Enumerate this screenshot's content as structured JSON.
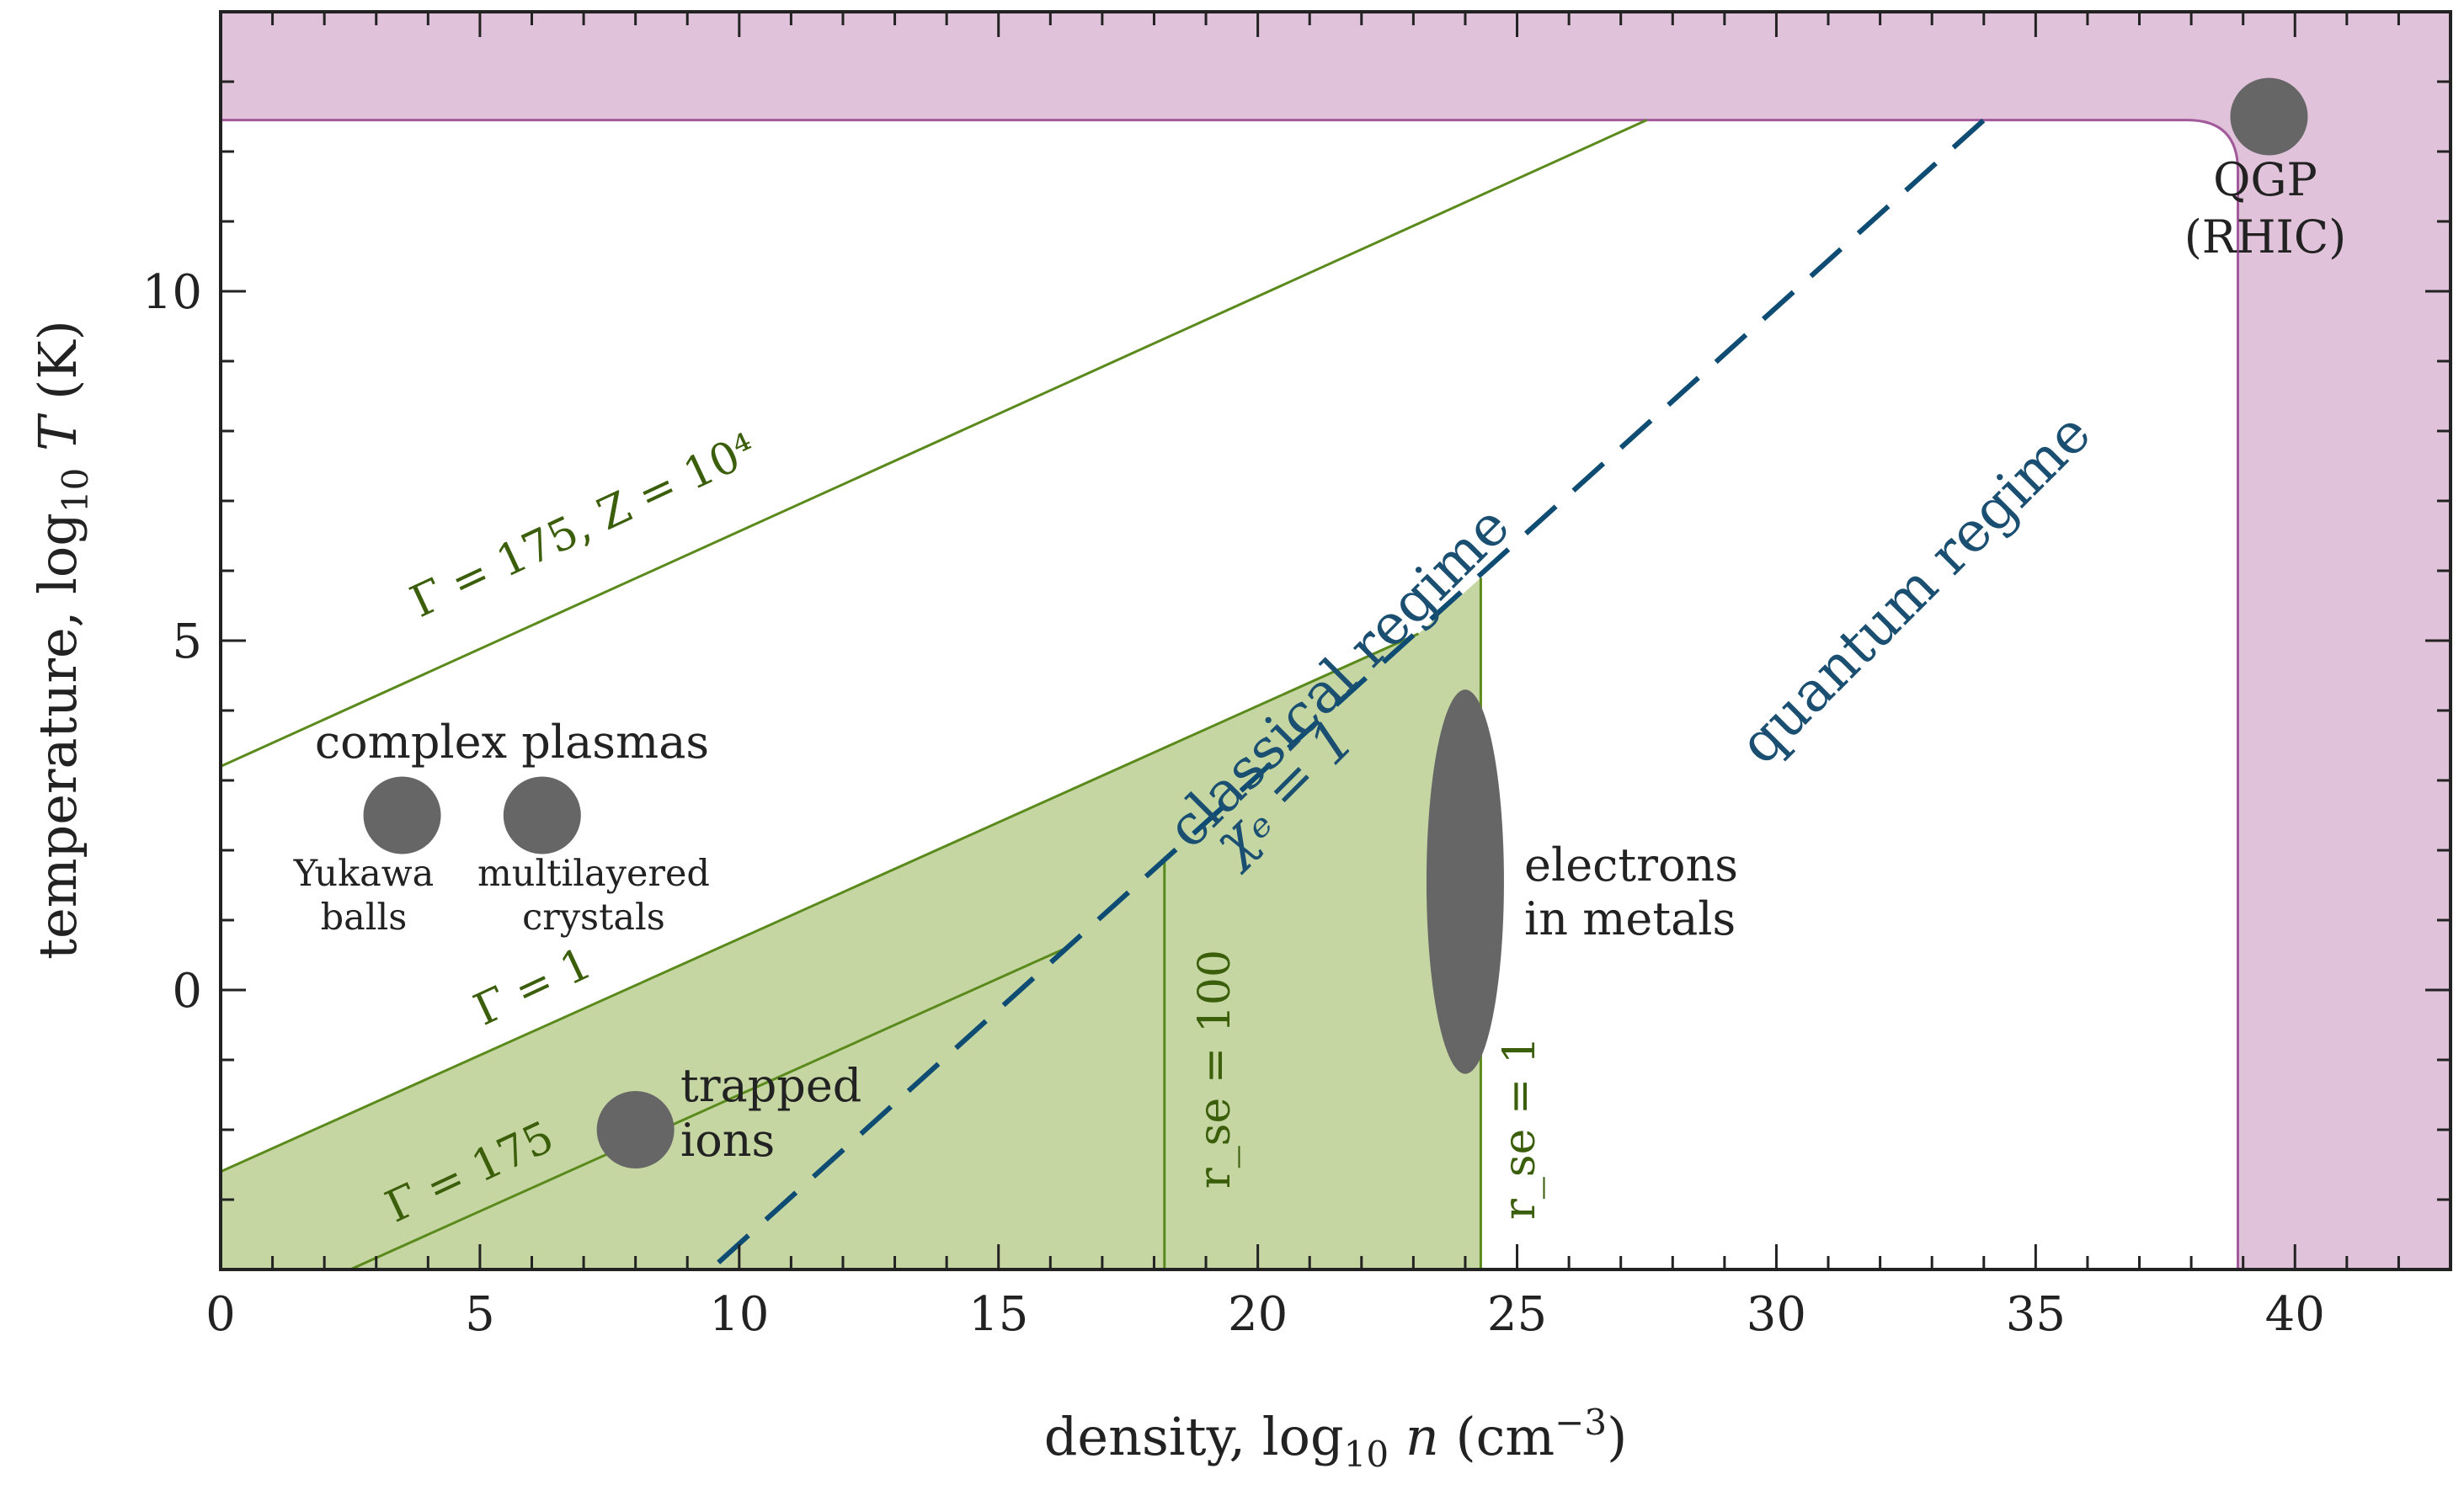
{
  "chart_data": {
    "type": "area",
    "xlabel": "density, log₁₀ n (cm⁻³)",
    "ylabel": "temperature, log₁₀ T (K)",
    "xlim": [
      0,
      43
    ],
    "ylim": [
      -4,
      14
    ],
    "x_ticks": [
      0,
      5,
      10,
      15,
      20,
      25,
      30,
      35,
      40
    ],
    "y_ticks": [
      0,
      5,
      10
    ],
    "x_tick_labels": [
      "0",
      "5",
      "10",
      "15",
      "20",
      "25",
      "30",
      "35",
      "40"
    ],
    "y_tick_labels": [
      "0",
      "5",
      "10"
    ],
    "colors": {
      "strong_coupling_fill": "#c5d6a3",
      "green_line": "#5b8a1c",
      "qgp_fill": "#e0c3da",
      "qgp_edge": "#a35a9c",
      "dashed_line": "#0e4c73",
      "marker": "#666666"
    },
    "lines": [
      {
        "label": "Γ = 175, Z = 10⁴",
        "points": [
          [
            0,
            3.2
          ],
          [
            27.5,
            12.45
          ]
        ]
      },
      {
        "label": "Γ = 1",
        "points": [
          [
            0,
            -2.6
          ],
          [
            23.1,
            5.1
          ]
        ]
      },
      {
        "label": "Γ = 175",
        "points": [
          [
            2.5,
            -4
          ],
          [
            16.3,
            0.6
          ]
        ]
      },
      {
        "label": "r_se = 100",
        "points": [
          [
            18.2,
            -4
          ],
          [
            18.2,
            1.9
          ]
        ]
      },
      {
        "label": "r_se = 1",
        "points": [
          [
            24.3,
            -4
          ],
          [
            24.3,
            5.9
          ]
        ]
      },
      {
        "label": "χₑ = 1",
        "style": "dashed",
        "points": [
          [
            9.6,
            -3.9
          ],
          [
            34,
            12.45
          ]
        ]
      }
    ],
    "regions": [
      {
        "name": "strongly coupled region",
        "points": [
          [
            0,
            -2.6
          ],
          [
            23.1,
            5.1
          ],
          [
            24.3,
            5.9
          ],
          [
            24.3,
            -4
          ],
          [
            0,
            -4
          ]
        ]
      },
      {
        "name": "QGP band",
        "y_min": 12.45,
        "x_min": 38.9
      }
    ],
    "markers": [
      {
        "label": "QGP (RHIC)",
        "x": 39.5,
        "y": 12.5
      },
      {
        "label": "Yukawa balls",
        "x": 3.5,
        "y": 2.5
      },
      {
        "label": "multilayered crystals",
        "x": 6.2,
        "y": 2.5
      },
      {
        "label": "trapped ions",
        "x": 8,
        "y": -2
      },
      {
        "label": "electrons in metals",
        "x": 24,
        "y": 1.5,
        "y_extent": [
          -1.2,
          4.3
        ]
      }
    ],
    "annotations": {
      "complex_plasmas": "complex plasmas",
      "classical_regime": "classical regime",
      "quantum_regime": "quantum regime",
      "qgp_line1": "QGP",
      "qgp_line2": "(RHIC)",
      "yukawa_line1": "Yukawa",
      "yukawa_line2": "balls",
      "multilayer_line1": "multilayered",
      "multilayer_line2": "crystals",
      "trapped_line1": "trapped",
      "trapped_line2": "ions",
      "electrons_line1": "electrons",
      "electrons_line2": "in metals",
      "gamma175z": "Γ = 175, Z = 10⁴",
      "gamma1": "Γ = 1",
      "gamma175": "Γ = 175",
      "rse100": "r_se = 100",
      "rse1": "r_se = 1",
      "chi": "χₑ = 1"
    }
  }
}
